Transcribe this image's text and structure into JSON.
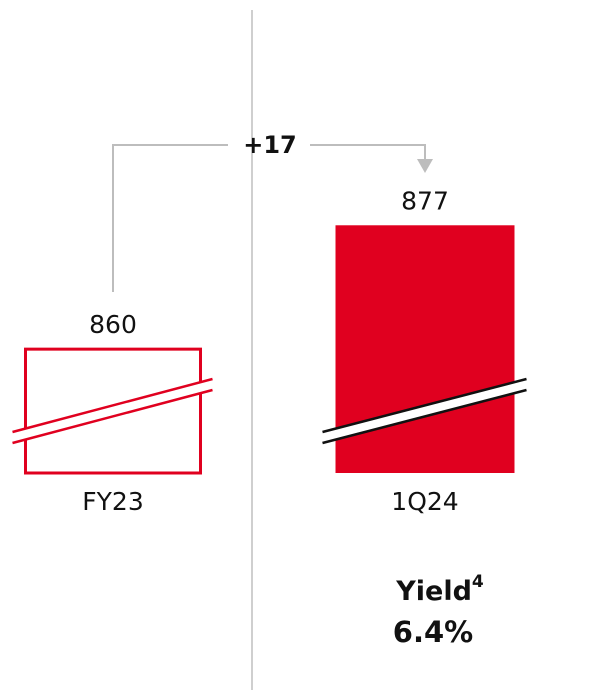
{
  "chart_data": {
    "type": "bar",
    "categories": [
      "FY23",
      "1Q24"
    ],
    "values": [
      860,
      877
    ],
    "color": "#e0001f",
    "filled": [
      false,
      true
    ],
    "ylim": [
      843,
      885
    ],
    "broken_axis": true,
    "annotation": "+17",
    "footer": {
      "label": "Yield",
      "footnote": "4",
      "value": "6.4%"
    }
  }
}
